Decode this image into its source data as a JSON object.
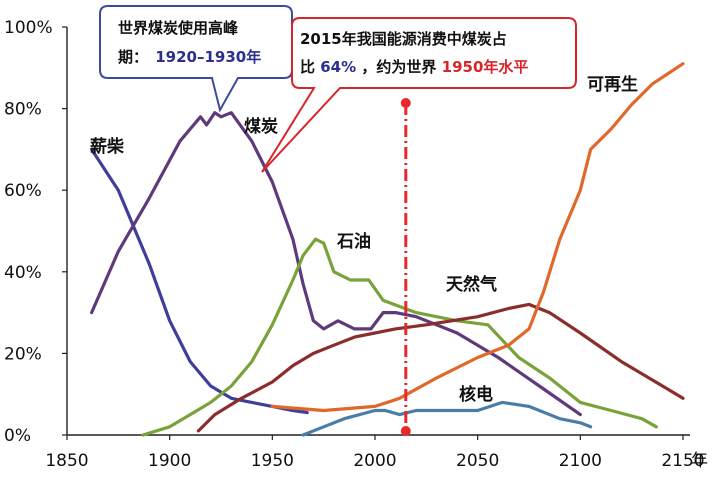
{
  "chart_data": {
    "type": "line",
    "title": "",
    "xlabel": "年",
    "ylabel": "",
    "xlim": [
      1850,
      2150
    ],
    "ylim": [
      0,
      100
    ],
    "x_ticks": [
      1850,
      1900,
      1950,
      2000,
      2050,
      2100,
      2150
    ],
    "x_tick_labels": [
      "1850",
      "1900",
      "1950",
      "2000",
      "2050",
      "2100",
      "2150"
    ],
    "y_ticks": [
      0,
      20,
      40,
      60,
      80,
      100
    ],
    "y_tick_labels": [
      "0%",
      "20%",
      "40%",
      "60%",
      "80%",
      "100%"
    ],
    "grid": false,
    "series": [
      {
        "name": "薪柴",
        "color": "#3f3f9a",
        "points": [
          [
            1862,
            70
          ],
          [
            1875,
            60
          ],
          [
            1890,
            42
          ],
          [
            1900,
            28
          ],
          [
            1910,
            18
          ],
          [
            1920,
            12
          ],
          [
            1930,
            9
          ],
          [
            1940,
            8
          ],
          [
            1950,
            7
          ],
          [
            1960,
            6
          ],
          [
            1967,
            5.5
          ]
        ]
      },
      {
        "name": "煤炭",
        "color": "#5e3a7a",
        "points": [
          [
            1862,
            30
          ],
          [
            1875,
            45
          ],
          [
            1890,
            58
          ],
          [
            1905,
            72
          ],
          [
            1915,
            78
          ],
          [
            1918,
            76
          ],
          [
            1922,
            79
          ],
          [
            1925,
            78
          ],
          [
            1930,
            79
          ],
          [
            1940,
            72
          ],
          [
            1950,
            62
          ],
          [
            1960,
            48
          ],
          [
            1965,
            37
          ],
          [
            1970,
            28
          ],
          [
            1975,
            26
          ],
          [
            1982,
            28
          ],
          [
            1990,
            26
          ],
          [
            1998,
            26
          ],
          [
            2004,
            30
          ],
          [
            2010,
            30
          ],
          [
            2020,
            29
          ],
          [
            2040,
            25
          ],
          [
            2060,
            19
          ],
          [
            2080,
            12
          ],
          [
            2100,
            5
          ]
        ]
      },
      {
        "name": "石油",
        "color": "#7aa23a",
        "points": [
          [
            1887,
            0
          ],
          [
            1900,
            2
          ],
          [
            1910,
            5
          ],
          [
            1920,
            8
          ],
          [
            1930,
            12
          ],
          [
            1940,
            18
          ],
          [
            1950,
            27
          ],
          [
            1960,
            38
          ],
          [
            1965,
            44
          ],
          [
            1971,
            48
          ],
          [
            1975,
            47
          ],
          [
            1980,
            40
          ],
          [
            1988,
            38
          ],
          [
            1997,
            38
          ],
          [
            2004,
            33
          ],
          [
            2020,
            30
          ],
          [
            2040,
            28
          ],
          [
            2055,
            27
          ],
          [
            2070,
            19
          ],
          [
            2085,
            14
          ],
          [
            2100,
            8
          ],
          [
            2115,
            6
          ],
          [
            2130,
            4
          ],
          [
            2137,
            2
          ]
        ]
      },
      {
        "name": "天然气",
        "color": "#8b2d2a",
        "points": [
          [
            1914,
            1
          ],
          [
            1922,
            5
          ],
          [
            1935,
            9
          ],
          [
            1950,
            13
          ],
          [
            1960,
            17
          ],
          [
            1970,
            20
          ],
          [
            1980,
            22
          ],
          [
            1990,
            24
          ],
          [
            2000,
            25
          ],
          [
            2010,
            26
          ],
          [
            2025,
            27
          ],
          [
            2050,
            29
          ],
          [
            2065,
            31
          ],
          [
            2075,
            32
          ],
          [
            2085,
            30
          ],
          [
            2100,
            25
          ],
          [
            2120,
            18
          ],
          [
            2140,
            12
          ],
          [
            2150,
            9
          ]
        ]
      },
      {
        "name": "核电",
        "color": "#4a7da6",
        "points": [
          [
            1965,
            0
          ],
          [
            1975,
            2
          ],
          [
            1985,
            4
          ],
          [
            2000,
            6
          ],
          [
            2005,
            6
          ],
          [
            2012,
            5
          ],
          [
            2020,
            6
          ],
          [
            2035,
            6
          ],
          [
            2050,
            6
          ],
          [
            2062,
            8
          ],
          [
            2075,
            7
          ],
          [
            2090,
            4
          ],
          [
            2100,
            3
          ],
          [
            2105,
            2
          ]
        ]
      },
      {
        "name": "可再生",
        "color": "#e0692a",
        "points": [
          [
            1950,
            7
          ],
          [
            1975,
            6
          ],
          [
            2000,
            7
          ],
          [
            2012,
            9
          ],
          [
            2030,
            14
          ],
          [
            2050,
            19
          ],
          [
            2065,
            22
          ],
          [
            2075,
            26
          ],
          [
            2082,
            35
          ],
          [
            2090,
            48
          ],
          [
            2100,
            60
          ],
          [
            2105,
            70
          ],
          [
            2115,
            75
          ],
          [
            2125,
            81
          ],
          [
            2135,
            86
          ],
          [
            2150,
            91
          ]
        ]
      }
    ],
    "reference_line": {
      "x": 2015,
      "color": "#e8282a"
    },
    "annotations": {
      "peak": {
        "line1": "世界煤炭使用高峰",
        "line2_prefix": "期：",
        "line2_value": "1920–1930年"
      },
      "china": {
        "line1": "2015年我国能源消费中煤炭占",
        "line2_a": "比",
        "line2_pct": "64%",
        "line2_b": "，约为世界",
        "line2_level": "1950年水平"
      }
    },
    "colors": {
      "axis": "#222222",
      "peak_box_border": "#3b4a9c",
      "china_box_border": "#d7262a",
      "highlight_blue": "#2b2f8f",
      "highlight_red": "#d7262a"
    }
  }
}
